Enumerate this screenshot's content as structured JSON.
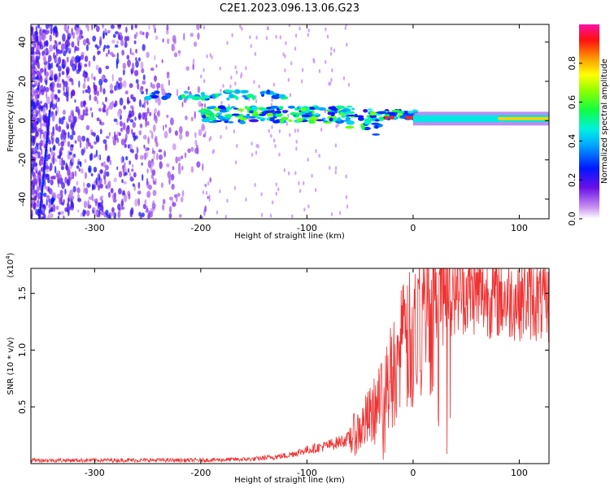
{
  "title": "C2E1.2023.096.13.06.G23",
  "colors": {
    "snr_line": "#ee3333",
    "background": "#ffffff",
    "axis": "#000000"
  },
  "chart_data": [
    {
      "type": "heatmap",
      "xlabel": "Height of straight line (km)",
      "ylabel": "Frequency (Hz)",
      "xlim": [
        -360,
        128
      ],
      "ylim": [
        -50,
        49
      ],
      "xticks": [
        -300,
        -200,
        -100,
        0,
        100
      ],
      "yticks": [
        -40,
        -20,
        0,
        20,
        40
      ],
      "colorbar": {
        "label": "Normalized spectral amplitude",
        "range": [
          0,
          1
        ],
        "ticks": [
          "0.0",
          "0.2",
          "0.4",
          "0.6",
          "0.8"
        ],
        "colormap": "rainbow"
      },
      "features": [
        {
          "description_free": true,
          "x_range": [
            -360,
            -200
          ],
          "y_range": [
            -50,
            49
          ],
          "level": 0.25
        },
        {
          "x_range": [
            -250,
            -120
          ],
          "y_center": 13,
          "level": 0.45
        },
        {
          "x_range": [
            -200,
            0
          ],
          "y_center": 3,
          "level": 0.55
        },
        {
          "x_range": [
            0,
            128
          ],
          "y_center": 1,
          "level": 0.5
        }
      ]
    },
    {
      "type": "line",
      "xlabel": "Height of straight line (km)",
      "ylabel": "SNR (10 * v/v)",
      "yscale_label": "(x10",
      "yscale_exp": "4",
      "yscale_close": ")",
      "xlim": [
        -360,
        128
      ],
      "ylim": [
        0,
        1.72
      ],
      "xticks": [
        -300,
        -200,
        -100,
        0,
        100
      ],
      "yticks": [
        "0.5",
        "1.0",
        "1.5"
      ],
      "ytick_values": [
        0.5,
        1.0,
        1.5
      ],
      "series": [
        {
          "color": "#ee3333",
          "x": [
            -360,
            -300,
            -250,
            -200,
            -150,
            -120,
            -100,
            -80,
            -60,
            -50,
            -40,
            -30,
            -20,
            -10,
            0,
            10,
            20,
            30,
            50,
            70,
            90,
            110,
            128
          ],
          "y": [
            0.03,
            0.03,
            0.03,
            0.03,
            0.04,
            0.07,
            0.12,
            0.16,
            0.22,
            0.3,
            0.42,
            0.55,
            0.8,
            1.0,
            1.1,
            1.3,
            1.45,
            1.52,
            1.52,
            1.48,
            1.45,
            1.45,
            1.4
          ]
        }
      ]
    }
  ]
}
